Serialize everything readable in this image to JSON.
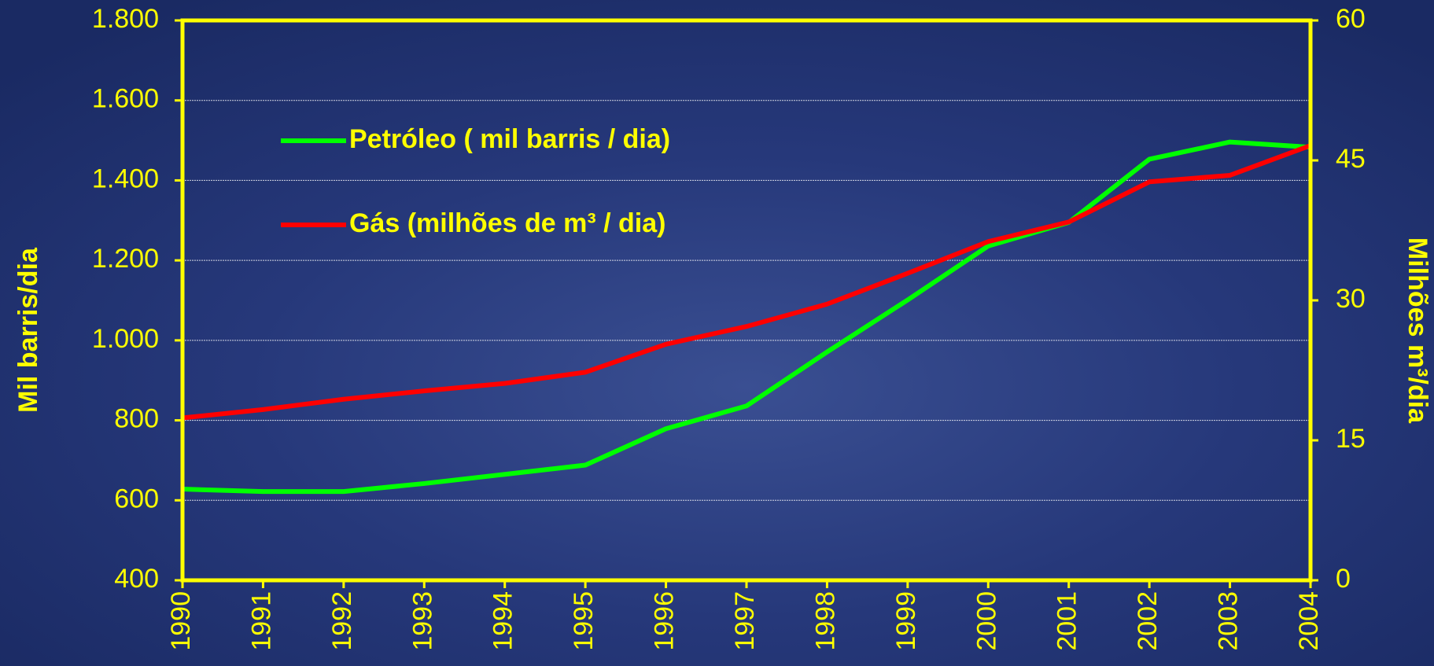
{
  "chart_data": {
    "type": "line",
    "ylabel": "Mil barris/dia",
    "y2label": "Milhões m³/dia",
    "categories": [
      "1990",
      "1991",
      "1992",
      "1993",
      "1994",
      "1995",
      "1996",
      "1997",
      "1998",
      "1999",
      "2000",
      "2001",
      "2002",
      "2003",
      "2004"
    ],
    "series": [
      {
        "name": "Petróleo ( mil barris / dia)",
        "color": "#00ff00",
        "values": [
          628,
          622,
          622,
          642,
          665,
          688,
          779,
          836,
          971,
          1101,
          1236,
          1295,
          1453,
          1496,
          1483
        ]
      },
      {
        "name": "Gás (milhões de m³ / dia)",
        "color": "#ff0000",
        "axis": "y2",
        "values": [
          17.4,
          18.3,
          19.4,
          20.3,
          21.1,
          22.3,
          25.3,
          27.2,
          29.6,
          32.9,
          36.3,
          38.4,
          42.7,
          43.4,
          46.6
        ]
      }
    ],
    "ylim": [
      400,
      1800
    ],
    "yticks": [
      400,
      600,
      800,
      {
        "value": 1000,
        "label": "1.000"
      },
      {
        "value": 1200,
        "label": "1.200"
      },
      {
        "value": 1400,
        "label": "1.400"
      },
      {
        "value": 1600,
        "label": "1.600"
      },
      {
        "value": 1800,
        "label": "1.800"
      }
    ],
    "y2lim": [
      0,
      60
    ],
    "y2ticks": [
      0,
      15,
      30,
      45,
      60
    ],
    "grid": true,
    "legend": "upper left"
  }
}
